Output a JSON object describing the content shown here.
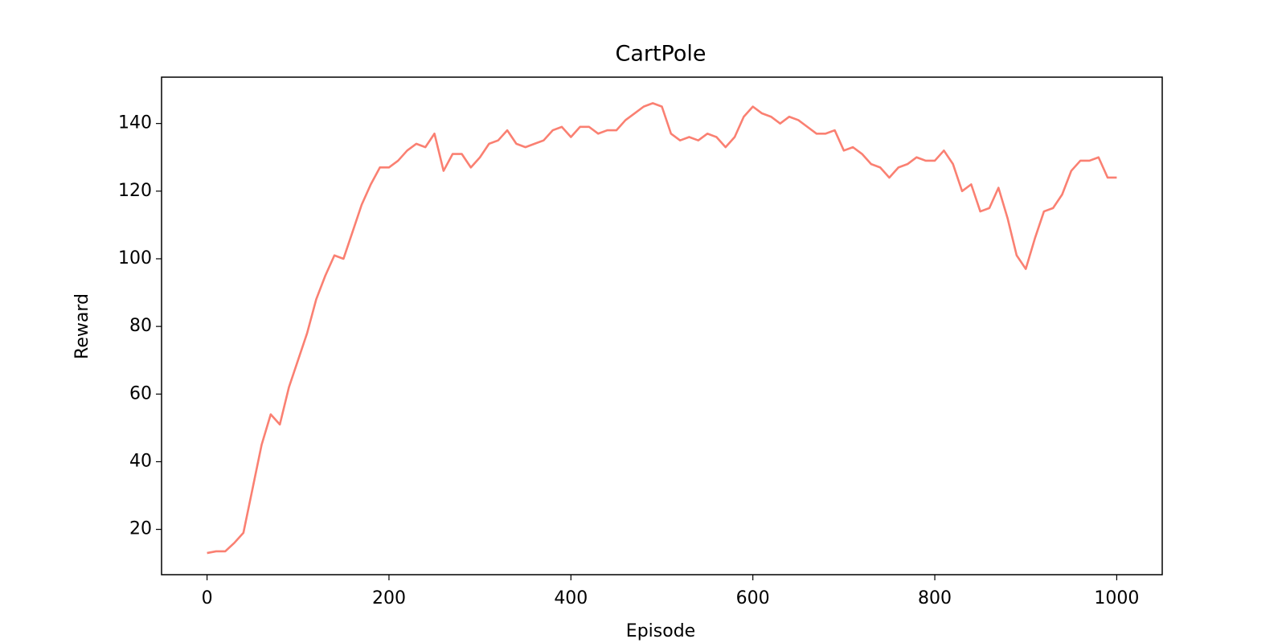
{
  "chart_data": {
    "type": "line",
    "title": "CartPole",
    "x_label": "Episode",
    "y_label": "Reward",
    "x": [
      0,
      10,
      20,
      30,
      40,
      50,
      60,
      70,
      80,
      90,
      100,
      110,
      120,
      130,
      140,
      150,
      160,
      170,
      180,
      190,
      200,
      210,
      220,
      230,
      240,
      250,
      260,
      270,
      280,
      290,
      300,
      310,
      320,
      330,
      340,
      350,
      360,
      370,
      380,
      390,
      400,
      410,
      420,
      430,
      440,
      450,
      460,
      470,
      480,
      490,
      500,
      510,
      520,
      530,
      540,
      550,
      560,
      570,
      580,
      590,
      600,
      610,
      620,
      630,
      640,
      650,
      660,
      670,
      680,
      690,
      700,
      710,
      720,
      730,
      740,
      750,
      760,
      770,
      780,
      790,
      800,
      810,
      820,
      830,
      840,
      850,
      860,
      870,
      880,
      890,
      900,
      910,
      920,
      930,
      940,
      950,
      960,
      970,
      980,
      990,
      1000
    ],
    "series": [
      {
        "name": "Reward",
        "color": "#fa8072",
        "values": [
          13,
          13.5,
          13.5,
          16,
          19,
          32,
          45,
          54,
          51,
          62,
          70,
          78,
          88,
          95,
          101,
          100,
          108,
          116,
          122,
          127,
          127,
          129,
          132,
          134,
          133,
          137,
          126,
          131,
          131,
          127,
          130,
          134,
          135,
          138,
          134,
          133,
          134,
          135,
          138,
          139,
          136,
          139,
          139,
          137,
          138,
          138,
          141,
          143,
          145,
          146,
          145,
          137,
          135,
          136,
          135,
          137,
          136,
          133,
          136,
          142,
          145,
          143,
          142,
          140,
          142,
          141,
          139,
          137,
          137,
          138,
          132,
          133,
          131,
          128,
          127,
          124,
          127,
          128,
          130,
          129,
          129,
          132,
          128,
          120,
          122,
          114,
          115,
          121,
          112,
          101,
          97,
          106,
          114,
          115,
          119,
          126,
          129,
          129,
          130,
          124,
          124
        ]
      }
    ],
    "xlim": [
      -50,
      1050
    ],
    "ylim": [
      6.6,
      153.7
    ],
    "xticks": [
      0,
      200,
      400,
      600,
      800,
      1000
    ],
    "yticks": [
      20,
      40,
      60,
      80,
      100,
      120,
      140
    ]
  }
}
